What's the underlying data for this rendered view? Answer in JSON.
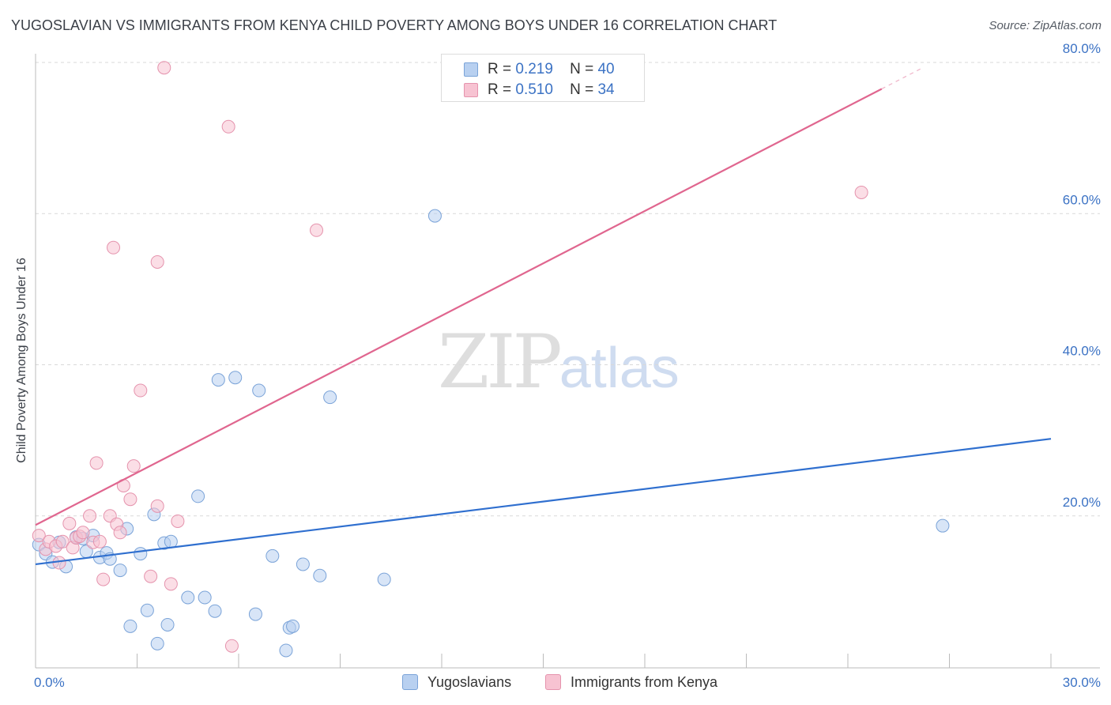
{
  "title": "YUGOSLAVIAN VS IMMIGRANTS FROM KENYA CHILD POVERTY AMONG BOYS UNDER 16 CORRELATION CHART",
  "source": "Source: ZipAtlas.com",
  "watermark": {
    "zip": "ZIP",
    "atlas": "atlas"
  },
  "legend": {
    "series1": {
      "r_label": "R =",
      "r_value": "0.219",
      "n_label": "N =",
      "n_value": "40"
    },
    "series2": {
      "r_label": "R =",
      "r_value": "0.510",
      "n_label": "N =",
      "n_value": "34"
    }
  },
  "colors": {
    "blue_fill": "#b8d0f0",
    "blue_stroke": "#7aa3d8",
    "blue_line": "#2f6fcf",
    "pink_fill": "#f7c3d2",
    "pink_stroke": "#e593ad",
    "pink_line": "#e0668f",
    "accent_text": "#3b72c4"
  },
  "chart_data": {
    "type": "scatter",
    "title": "YUGOSLAVIAN VS IMMIGRANTS FROM KENYA CHILD POVERTY AMONG BOYS UNDER 16 CORRELATION CHART",
    "xlabel": "",
    "ylabel": "Child Poverty Among Boys Under 16",
    "xlim": [
      0,
      30
    ],
    "ylim": [
      0,
      80
    ],
    "x_tick_labels": [
      "0.0%",
      "30.0%"
    ],
    "y_ticks": [
      20,
      40,
      60,
      80
    ],
    "y_tick_labels": [
      "20.0%",
      "40.0%",
      "60.0%",
      "80.0%"
    ],
    "grid": true,
    "legend_position": "bottom-center",
    "series": [
      {
        "name": "Yugoslavians",
        "color": "#b8d0f0",
        "r": 0.219,
        "n": 40,
        "trend": {
          "x": [
            0,
            30
          ],
          "y": [
            13.6,
            30.2
          ]
        },
        "points": [
          {
            "x": 0.1,
            "y": 16.2
          },
          {
            "x": 0.3,
            "y": 15.0
          },
          {
            "x": 0.5,
            "y": 13.9
          },
          {
            "x": 0.7,
            "y": 16.5
          },
          {
            "x": 0.9,
            "y": 13.3
          },
          {
            "x": 1.2,
            "y": 17.2
          },
          {
            "x": 1.4,
            "y": 17.0
          },
          {
            "x": 1.5,
            "y": 15.3
          },
          {
            "x": 1.7,
            "y": 17.4
          },
          {
            "x": 1.9,
            "y": 14.5
          },
          {
            "x": 2.1,
            "y": 15.1
          },
          {
            "x": 2.2,
            "y": 14.3
          },
          {
            "x": 2.5,
            "y": 12.8
          },
          {
            "x": 2.7,
            "y": 18.3
          },
          {
            "x": 2.8,
            "y": 5.4
          },
          {
            "x": 3.1,
            "y": 15.0
          },
          {
            "x": 3.3,
            "y": 7.5
          },
          {
            "x": 3.5,
            "y": 20.2
          },
          {
            "x": 3.6,
            "y": 3.1
          },
          {
            "x": 3.8,
            "y": 16.4
          },
          {
            "x": 3.9,
            "y": 5.6
          },
          {
            "x": 4.0,
            "y": 16.6
          },
          {
            "x": 4.5,
            "y": 9.2
          },
          {
            "x": 4.8,
            "y": 22.6
          },
          {
            "x": 5.0,
            "y": 9.2
          },
          {
            "x": 5.3,
            "y": 7.4
          },
          {
            "x": 5.4,
            "y": 38.0
          },
          {
            "x": 5.9,
            "y": 38.3
          },
          {
            "x": 6.5,
            "y": 7.0
          },
          {
            "x": 6.6,
            "y": 36.6
          },
          {
            "x": 7.0,
            "y": 14.7
          },
          {
            "x": 7.5,
            "y": 5.2
          },
          {
            "x": 7.6,
            "y": 5.4
          },
          {
            "x": 7.4,
            "y": 2.2
          },
          {
            "x": 7.9,
            "y": 13.6
          },
          {
            "x": 8.4,
            "y": 12.1
          },
          {
            "x": 8.7,
            "y": 35.7
          },
          {
            "x": 10.3,
            "y": 11.6
          },
          {
            "x": 11.8,
            "y": 59.7
          },
          {
            "x": 26.8,
            "y": 18.7
          }
        ]
      },
      {
        "name": "Immigrants from Kenya",
        "color": "#f7c3d2",
        "r": 0.51,
        "n": 34,
        "trend": {
          "x": [
            0,
            25.0
          ],
          "y": [
            18.8,
            76.5
          ]
        },
        "points": [
          {
            "x": 0.1,
            "y": 17.4
          },
          {
            "x": 0.3,
            "y": 15.6
          },
          {
            "x": 0.4,
            "y": 16.6
          },
          {
            "x": 0.6,
            "y": 16.0
          },
          {
            "x": 0.7,
            "y": 13.8
          },
          {
            "x": 0.8,
            "y": 16.6
          },
          {
            "x": 1.0,
            "y": 19.0
          },
          {
            "x": 1.1,
            "y": 15.8
          },
          {
            "x": 1.2,
            "y": 17.1
          },
          {
            "x": 1.3,
            "y": 17.3
          },
          {
            "x": 1.4,
            "y": 17.8
          },
          {
            "x": 1.6,
            "y": 20.0
          },
          {
            "x": 1.7,
            "y": 16.5
          },
          {
            "x": 1.8,
            "y": 27.0
          },
          {
            "x": 1.9,
            "y": 16.6
          },
          {
            "x": 2.0,
            "y": 11.6
          },
          {
            "x": 2.2,
            "y": 20.0
          },
          {
            "x": 2.3,
            "y": 55.5
          },
          {
            "x": 2.4,
            "y": 18.9
          },
          {
            "x": 2.6,
            "y": 24.0
          },
          {
            "x": 2.5,
            "y": 17.8
          },
          {
            "x": 2.8,
            "y": 22.2
          },
          {
            "x": 2.9,
            "y": 26.6
          },
          {
            "x": 3.1,
            "y": 36.6
          },
          {
            "x": 3.4,
            "y": 12.0
          },
          {
            "x": 3.6,
            "y": 21.3
          },
          {
            "x": 3.6,
            "y": 53.6
          },
          {
            "x": 3.8,
            "y": 79.3
          },
          {
            "x": 4.0,
            "y": 11.0
          },
          {
            "x": 4.2,
            "y": 19.3
          },
          {
            "x": 5.7,
            "y": 71.5
          },
          {
            "x": 5.8,
            "y": 2.8
          },
          {
            "x": 8.3,
            "y": 57.8
          },
          {
            "x": 24.4,
            "y": 62.8
          }
        ]
      }
    ]
  },
  "bottom_legend": {
    "item1": "Yugoslavians",
    "item2": "Immigrants from Kenya"
  }
}
